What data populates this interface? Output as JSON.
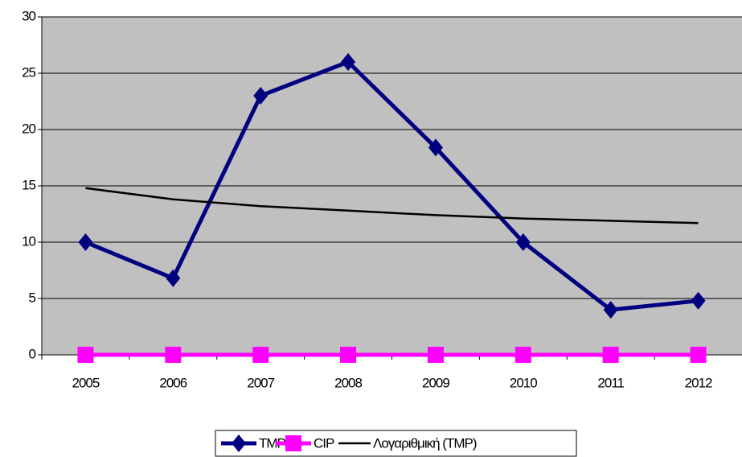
{
  "chart_data": {
    "type": "line",
    "categories": [
      "2005",
      "2006",
      "2007",
      "2008",
      "2009",
      "2010",
      "2011",
      "2012"
    ],
    "series": [
      {
        "name": "TMP",
        "color": "#000080",
        "marker": "diamond",
        "values": [
          10,
          6.8,
          23,
          26,
          18.4,
          10,
          4,
          4.8
        ]
      },
      {
        "name": "CIP",
        "color": "#ff00ff",
        "marker": "square",
        "values": [
          0,
          0,
          0,
          0,
          0,
          0,
          0,
          0
        ]
      },
      {
        "name": "Λογαριθμική (TMP)",
        "color": "#000000",
        "marker": null,
        "values": [
          14.8,
          13.8,
          13.2,
          12.8,
          12.4,
          12.1,
          11.9,
          11.7
        ]
      }
    ],
    "ylim": [
      0,
      30
    ],
    "yticks": [
      0,
      5,
      10,
      15,
      20,
      25,
      30
    ],
    "grid": true,
    "legend": "bottom"
  }
}
